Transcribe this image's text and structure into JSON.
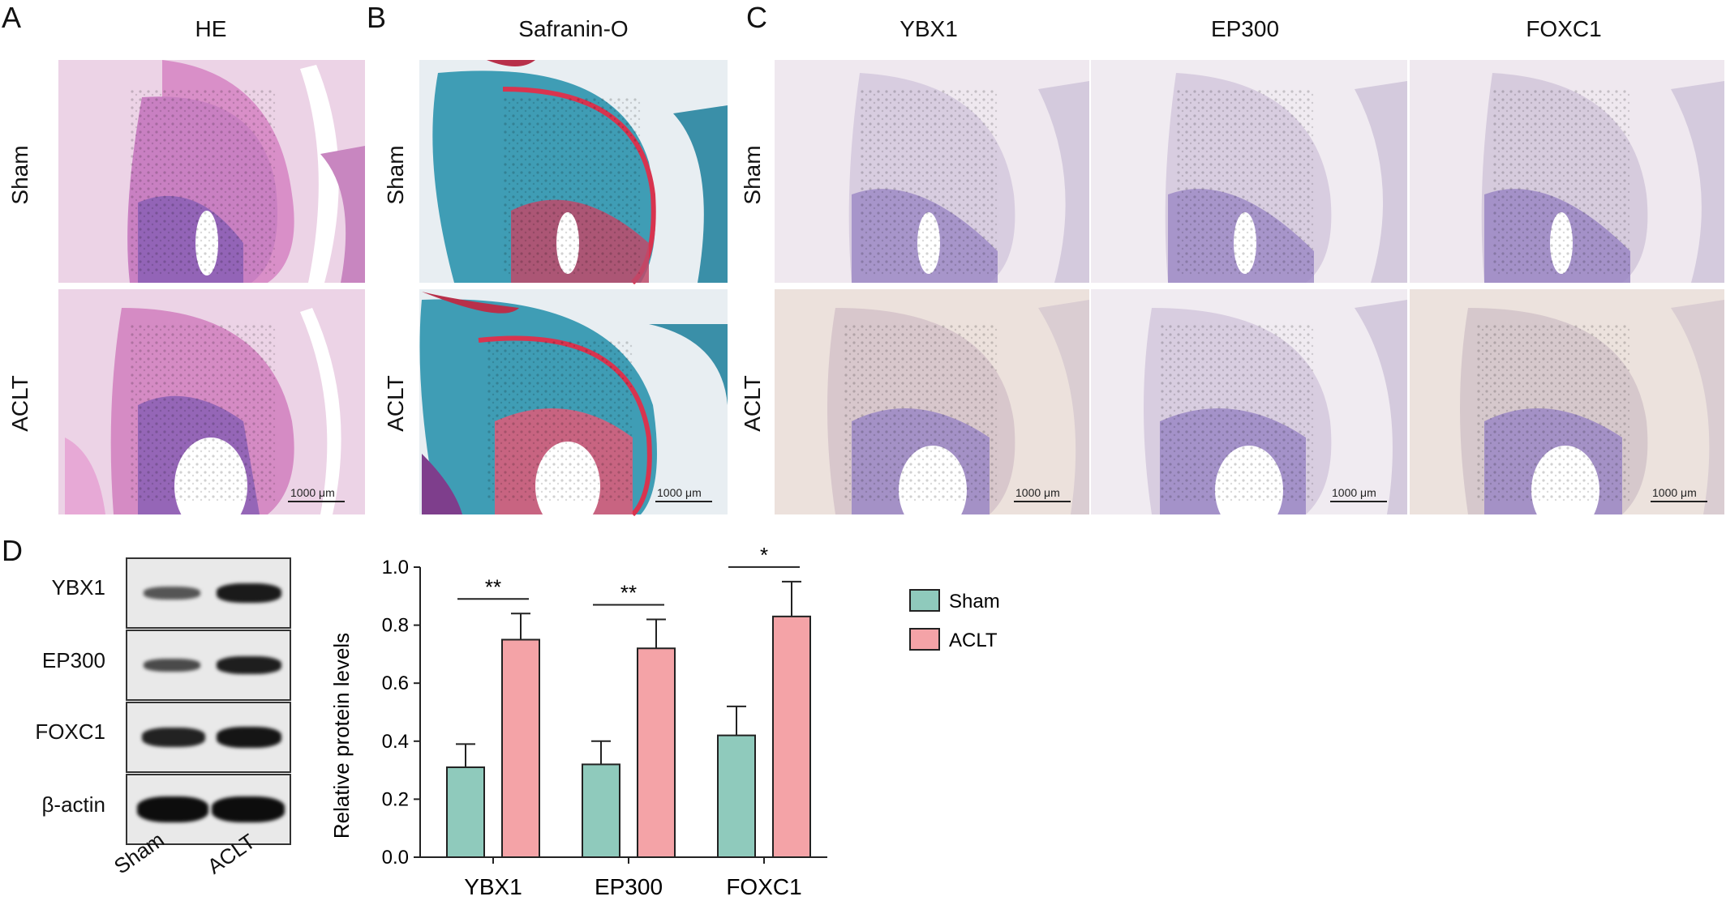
{
  "panels": {
    "A": {
      "letter": "A",
      "title": "HE"
    },
    "B": {
      "letter": "B",
      "title": "Safranin-O"
    },
    "C": {
      "letter": "C",
      "titles": [
        "YBX1",
        "EP300",
        "FOXC1"
      ]
    },
    "D": {
      "letter": "D"
    }
  },
  "row_labels": {
    "sham": "Sham",
    "aclt": "ACLT"
  },
  "scale_bar": "1000 μm",
  "blot": {
    "proteins": [
      "YBX1",
      "EP300",
      "FOXC1",
      "β-actin"
    ],
    "lanes": [
      "Sham",
      "ACLT"
    ]
  },
  "colors": {
    "sham": "#8fcabc",
    "aclt": "#f4a3a7",
    "he_pink": "#d98fc8",
    "he_purple": "#8a5fb5",
    "safranin_red": "#d8344f",
    "fastgreen": "#3f9db5",
    "ihc_bg": "#efe8ef",
    "ihc_purple": "#9b87c4"
  },
  "chart_data": {
    "type": "bar",
    "categories": [
      "YBX1",
      "EP300",
      "FOXC1"
    ],
    "ylabel": "Relative protein levels",
    "ylim": [
      0.0,
      1.0
    ],
    "yticks": [
      "0.0",
      "0.2",
      "0.4",
      "0.6",
      "0.8",
      "1.0"
    ],
    "legend_position": "right",
    "series": [
      {
        "name": "Sham",
        "values": [
          0.31,
          0.32,
          0.42
        ],
        "errors": [
          0.08,
          0.08,
          0.1
        ]
      },
      {
        "name": "ACLT",
        "values": [
          0.75,
          0.72,
          0.83
        ],
        "errors": [
          0.09,
          0.1,
          0.12
        ]
      }
    ],
    "significance": [
      "**",
      "**",
      "*"
    ]
  }
}
